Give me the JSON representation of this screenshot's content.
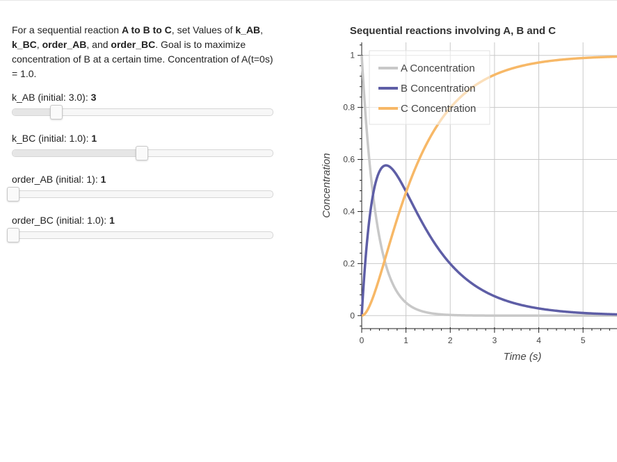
{
  "description": {
    "t1": "For a sequential reaction ",
    "b1": "A to B to C",
    "t2": ", set Values of ",
    "b2": "k_AB",
    "t3": ", ",
    "b3": "k_BC",
    "t4": ", ",
    "b4": "order_AB",
    "t5": ", and ",
    "b5": "order_BC",
    "t6": ". Goal is to maximize concentration of B at a certain time. Concentration of A(t=0s) = 1.0."
  },
  "sliders": [
    {
      "label": "k_AB (initial: 3.0): ",
      "value": "3",
      "fraction": 0.165
    },
    {
      "label": "k_BC (initial: 1.0): ",
      "value": "1",
      "fraction": 0.495
    },
    {
      "label": "order_AB (initial: 1): ",
      "value": "1",
      "fraction": 0.0
    },
    {
      "label": "order_BC (initial: 1.0): ",
      "value": "1",
      "fraction": 0.0
    }
  ],
  "chart_data": {
    "type": "line",
    "title": "Sequential reactions involving A, B and C",
    "xlabel": "Time (s)",
    "ylabel": "Concentration",
    "xlim": [
      0,
      6.6
    ],
    "ylim": [
      -0.05,
      1.05
    ],
    "xticks": [
      "0",
      "1",
      "2",
      "3",
      "4",
      "5",
      "6"
    ],
    "yticks": [
      "0",
      "0.2",
      "0.4",
      "0.6",
      "0.8",
      "1"
    ],
    "grid": true,
    "legend_position": "top-left",
    "params": {
      "k_AB": 3,
      "k_BC": 1,
      "order_AB": 1,
      "order_BC": 1,
      "A0": 1.0
    },
    "series": [
      {
        "name": "A Concentration",
        "color": "#c8c8c8"
      },
      {
        "name": "B Concentration",
        "color": "#5e5ea6"
      },
      {
        "name": "C Concentration",
        "color": "#f7b867"
      }
    ]
  }
}
